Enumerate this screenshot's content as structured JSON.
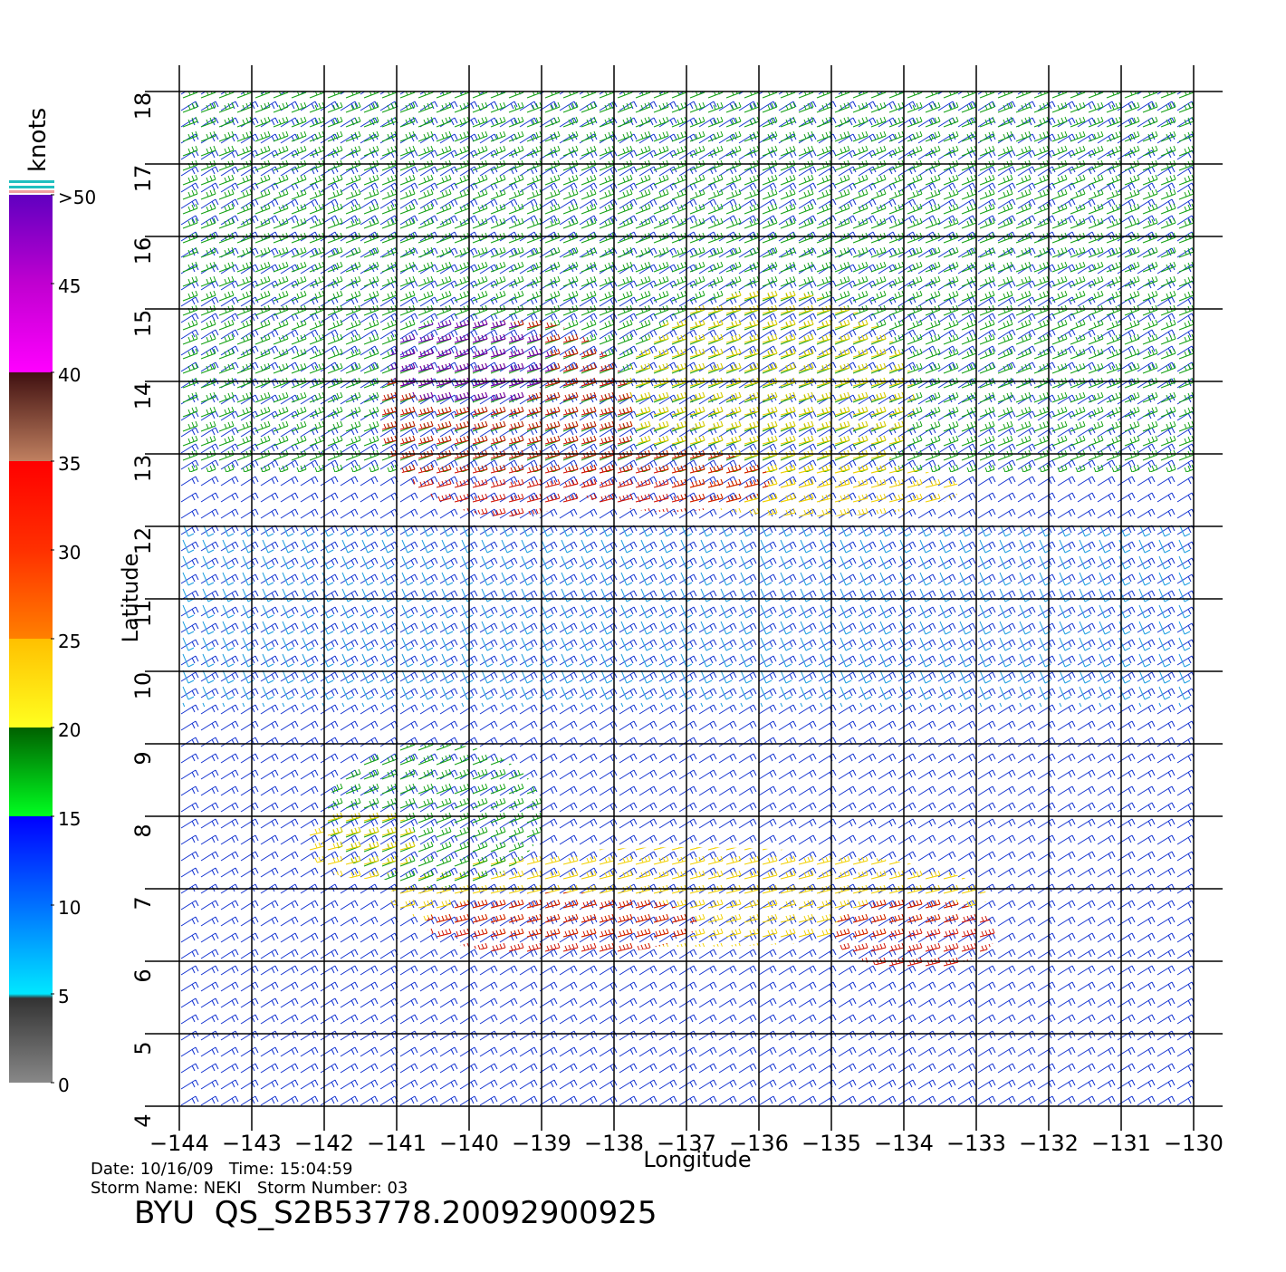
{
  "map": {
    "x_label": "Longitude",
    "y_label": "Latitude",
    "xlim": [
      -144,
      -130
    ],
    "ylim": [
      4,
      18
    ],
    "xticks": [
      {
        "value": -144,
        "label": "−144"
      },
      {
        "value": -143,
        "label": "−143"
      },
      {
        "value": -142,
        "label": "−142"
      },
      {
        "value": -141,
        "label": "−141"
      },
      {
        "value": -140,
        "label": "−140"
      },
      {
        "value": -139,
        "label": "−139"
      },
      {
        "value": -138,
        "label": "−138"
      },
      {
        "value": -137,
        "label": "−137"
      },
      {
        "value": -136,
        "label": "−136"
      },
      {
        "value": -135,
        "label": "−135"
      },
      {
        "value": -134,
        "label": "−134"
      },
      {
        "value": -133,
        "label": "−133"
      },
      {
        "value": -132,
        "label": "−132"
      },
      {
        "value": -131,
        "label": "−131"
      },
      {
        "value": -130,
        "label": "−130"
      }
    ],
    "yticks": [
      4,
      5,
      6,
      7,
      8,
      9,
      10,
      11,
      12,
      13,
      14,
      15,
      16,
      17,
      18
    ]
  },
  "colorbar": {
    "title": "knots",
    "lim": [
      0,
      50
    ],
    "ticks": [
      {
        "value": 50,
        "label": ">50"
      },
      45,
      40,
      35,
      30,
      25,
      20,
      15,
      10,
      5,
      0
    ]
  },
  "footer": {
    "line1": "Date: 10/16/09   Time: 15:04:59",
    "line2": "Storm Name: NEKI   Storm Number: 03",
    "title": "BYU  QS_S2B53778.20092900925"
  }
}
